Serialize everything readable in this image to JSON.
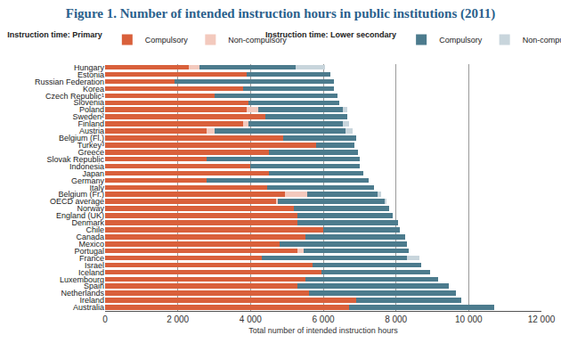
{
  "chart_data": {
    "type": "bar",
    "orientation": "horizontal",
    "stacked": true,
    "grid": true,
    "legend": "top",
    "title": "Figure 1. Number of intended instruction hours in public institutions (2011)",
    "x_label": "Total number of intended instruction hours",
    "categories": [
      "Hungary",
      "Estonia",
      "Russian Federation",
      "Korea",
      "Czech Republic¹",
      "Slovenia",
      "Poland",
      "Sweden²",
      "Finland",
      "Austria",
      "Belgium (Fl.)",
      "Turkey³",
      "Greece",
      "Slovak Republic",
      "Indonesia",
      "Japan",
      "Germany",
      "Italy",
      "Belgium (Fr.)",
      "OECD average",
      "Norway",
      "England (UK)",
      "Denmark",
      "Chile",
      "Canada",
      "Mexico",
      "Portugal",
      "France",
      "Israel",
      "Iceland",
      "Luxembourg",
      "Spain",
      "Netherlands",
      "Ireland",
      "Australia"
    ],
    "series": [
      {
        "name": "Compulsory",
        "group": "Instruction time: Primary",
        "color": "#d9603b",
        "values": [
          2300,
          3900,
          1900,
          3800,
          3000,
          3950,
          3900,
          4400,
          3800,
          2800,
          4900,
          5800,
          4500,
          2800,
          4000,
          4500,
          2800,
          4450,
          4950,
          4700,
          5200,
          5300,
          5300,
          6000,
          5500,
          4800,
          5300,
          4300,
          5700,
          5950,
          5500,
          5300,
          5600,
          6900,
          6700
        ]
      },
      {
        "name": "Non-compulsory",
        "group": "Instruction time: Primary",
        "color": "#f3c9bd",
        "values": [
          300,
          0,
          0,
          0,
          0,
          0,
          300,
          0,
          150,
          200,
          0,
          0,
          0,
          0,
          0,
          0,
          0,
          0,
          600,
          50,
          0,
          0,
          0,
          0,
          0,
          0,
          150,
          0,
          0,
          0,
          0,
          0,
          0,
          0,
          0
        ]
      },
      {
        "name": "Compulsory",
        "group": "Instruction time: Lower secondary",
        "color": "#4c7b8d",
        "values": [
          2650,
          2300,
          4400,
          2500,
          3400,
          2500,
          2350,
          2250,
          2600,
          3600,
          2000,
          1050,
          2450,
          4200,
          3000,
          2600,
          4450,
          2950,
          1950,
          2950,
          2600,
          2600,
          2750,
          2100,
          2750,
          3500,
          2900,
          4000,
          3000,
          3000,
          3650,
          4150,
          4050,
          2900,
          4000
        ]
      },
      {
        "name": "Non-compulsory",
        "group": "Instruction time: Lower secondary",
        "color": "#c8d5dc",
        "values": [
          800,
          0,
          0,
          0,
          0,
          0,
          100,
          0,
          150,
          200,
          0,
          0,
          0,
          0,
          0,
          0,
          0,
          0,
          100,
          50,
          0,
          0,
          0,
          0,
          0,
          0,
          0,
          350,
          0,
          0,
          0,
          0,
          0,
          0,
          0
        ]
      }
    ],
    "xlim": [
      0,
      12000
    ],
    "xticks": [
      0,
      {
        "value": 2000,
        "label": "2 000"
      },
      {
        "value": 4000,
        "label": "4 000"
      },
      {
        "value": 6000,
        "label": "6 000"
      },
      {
        "value": 8000,
        "label": "8 000"
      },
      {
        "value": 10000,
        "label": "10 000"
      },
      {
        "value": 12000,
        "label": "12 000"
      }
    ]
  }
}
